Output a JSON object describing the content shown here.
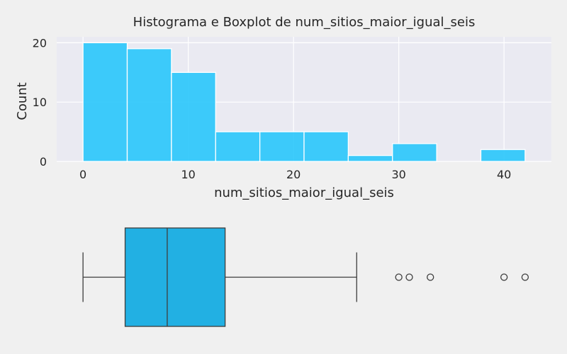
{
  "chart_data": [
    {
      "type": "bar",
      "subtype": "histogram",
      "title": "Histograma e Boxplot de num_sitios_maior_igual_seis",
      "xlabel": "num_sitios_maior_igual_seis",
      "ylabel": "Count",
      "xlim": [
        -2.5,
        44.5
      ],
      "ylim": [
        0,
        21
      ],
      "xticks": [
        0,
        10,
        20,
        30,
        40
      ],
      "yticks": [
        0,
        10,
        20
      ],
      "bin_edges": [
        0,
        4.2,
        8.4,
        12.6,
        16.8,
        21.0,
        25.2,
        29.4,
        33.6,
        37.8,
        42.0
      ],
      "counts": [
        20,
        19,
        15,
        5,
        5,
        5,
        1,
        3,
        0,
        2
      ],
      "grid": true,
      "bar_color": "#29c6fb",
      "plot_background": "#eaeaf2"
    },
    {
      "type": "boxplot",
      "min": 0,
      "q1": 4,
      "median": 8,
      "q3": 13.5,
      "whisker_high": 26,
      "outliers": [
        30,
        31,
        33,
        40,
        42
      ],
      "box_color": "#22b0e3"
    }
  ]
}
